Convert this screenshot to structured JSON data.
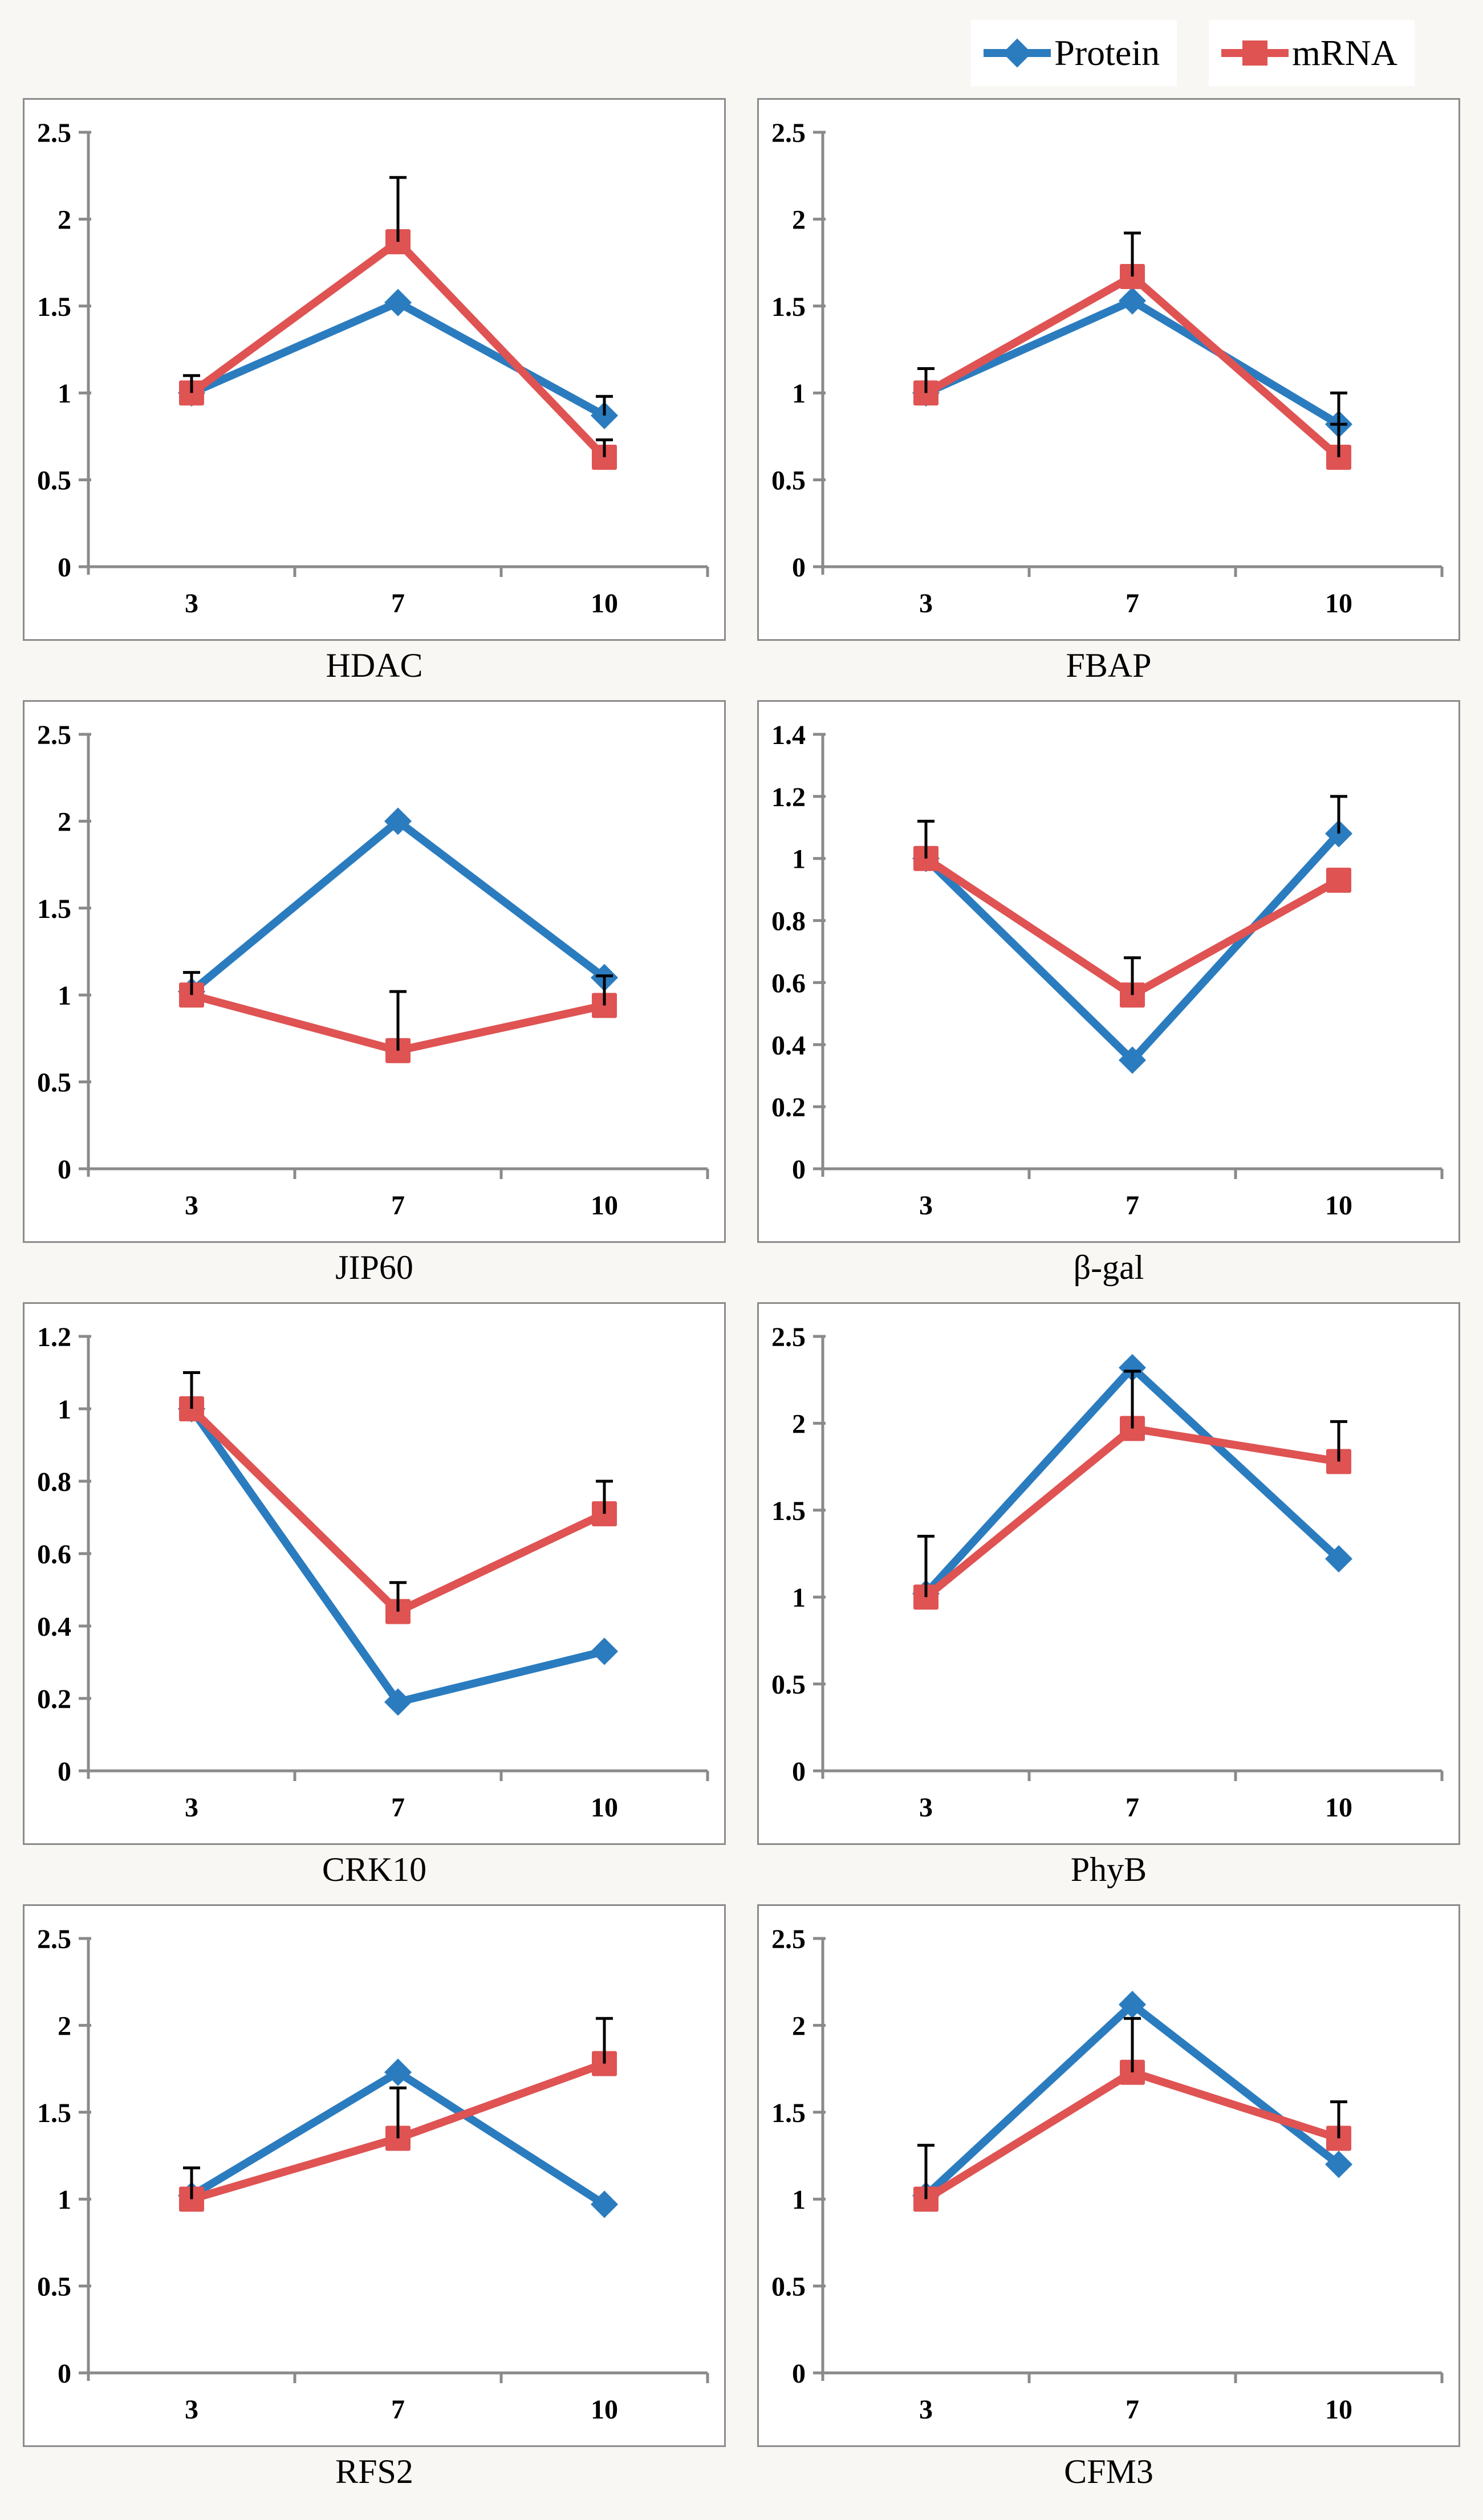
{
  "page": {
    "background": "#F8F7F4",
    "panel_bg": "#FFFFFF",
    "panel_border": "#8C8C8C",
    "axis_color": "#8A8A8A",
    "error_bar_color": "#000000"
  },
  "legend": {
    "items": [
      {
        "label": "Protein",
        "marker": "diamond",
        "color": "#2B7CBF"
      },
      {
        "label": "mRNA",
        "marker": "square",
        "color": "#DF5353"
      }
    ]
  },
  "chart_data": [
    {
      "type": "line",
      "title": "HDAC",
      "categories": [
        "3",
        "7",
        "10"
      ],
      "ylim": [
        0,
        2.5
      ],
      "ytick_step": 0.5,
      "grid": false,
      "series": [
        {
          "name": "Protein",
          "marker": "diamond",
          "color": "#2B7CBF",
          "values": [
            1.0,
            1.52,
            0.87
          ],
          "err_up": [
            0,
            0,
            0.11
          ]
        },
        {
          "name": "mRNA",
          "marker": "square",
          "color": "#DF5353",
          "values": [
            1.0,
            1.87,
            0.63
          ],
          "err_up": [
            0.1,
            0.37,
            0.1
          ]
        }
      ]
    },
    {
      "type": "line",
      "title": "FBAP",
      "categories": [
        "3",
        "7",
        "10"
      ],
      "ylim": [
        0,
        2.5
      ],
      "ytick_step": 0.5,
      "grid": false,
      "series": [
        {
          "name": "Protein",
          "marker": "diamond",
          "color": "#2B7CBF",
          "values": [
            1.0,
            1.53,
            0.82
          ],
          "err_up": [
            0,
            0,
            0.18
          ]
        },
        {
          "name": "mRNA",
          "marker": "square",
          "color": "#DF5353",
          "values": [
            1.0,
            1.67,
            0.63
          ],
          "err_up": [
            0.14,
            0.25,
            0.19
          ]
        }
      ]
    },
    {
      "type": "line",
      "title": "JIP60",
      "categories": [
        "3",
        "7",
        "10"
      ],
      "ylim": [
        0,
        2.5
      ],
      "ytick_step": 0.5,
      "grid": false,
      "series": [
        {
          "name": "Protein",
          "marker": "diamond",
          "color": "#2B7CBF",
          "values": [
            1.02,
            2.0,
            1.1
          ],
          "err_up": [
            0,
            0,
            0
          ]
        },
        {
          "name": "mRNA",
          "marker": "square",
          "color": "#DF5353",
          "values": [
            1.0,
            0.68,
            0.94
          ],
          "err_up": [
            0.13,
            0.34,
            0.17
          ]
        }
      ]
    },
    {
      "type": "line",
      "title": "β-gal",
      "categories": [
        "3",
        "7",
        "10"
      ],
      "ylim": [
        0,
        1.4
      ],
      "ytick_step": 0.2,
      "grid": false,
      "series": [
        {
          "name": "Protein",
          "marker": "diamond",
          "color": "#2B7CBF",
          "values": [
            1.0,
            0.35,
            1.08
          ],
          "err_up": [
            0,
            0,
            0.12
          ]
        },
        {
          "name": "mRNA",
          "marker": "square",
          "color": "#DF5353",
          "values": [
            1.0,
            0.56,
            0.93
          ],
          "err_up": [
            0.12,
            0.12,
            0
          ]
        }
      ]
    },
    {
      "type": "line",
      "title": "CRK10",
      "categories": [
        "3",
        "7",
        "10"
      ],
      "ylim": [
        0,
        1.2
      ],
      "ytick_step": 0.2,
      "grid": false,
      "series": [
        {
          "name": "Protein",
          "marker": "diamond",
          "color": "#2B7CBF",
          "values": [
            1.0,
            0.19,
            0.33
          ],
          "err_up": [
            0,
            0,
            0
          ]
        },
        {
          "name": "mRNA",
          "marker": "square",
          "color": "#DF5353",
          "values": [
            1.0,
            0.44,
            0.71
          ],
          "err_up": [
            0.1,
            0.08,
            0.09
          ]
        }
      ]
    },
    {
      "type": "line",
      "title": "PhyB",
      "categories": [
        "3",
        "7",
        "10"
      ],
      "ylim": [
        0,
        2.5
      ],
      "ytick_step": 0.5,
      "grid": false,
      "series": [
        {
          "name": "Protein",
          "marker": "diamond",
          "color": "#2B7CBF",
          "values": [
            1.02,
            2.32,
            1.22
          ],
          "err_up": [
            0,
            0,
            0
          ]
        },
        {
          "name": "mRNA",
          "marker": "square",
          "color": "#DF5353",
          "values": [
            1.0,
            1.97,
            1.78
          ],
          "err_up": [
            0.35,
            0.33,
            0.23
          ]
        }
      ]
    },
    {
      "type": "line",
      "title": "RFS2",
      "categories": [
        "3",
        "7",
        "10"
      ],
      "ylim": [
        0,
        2.5
      ],
      "ytick_step": 0.5,
      "grid": false,
      "series": [
        {
          "name": "Protein",
          "marker": "diamond",
          "color": "#2B7CBF",
          "values": [
            1.02,
            1.73,
            0.97
          ],
          "err_up": [
            0,
            0,
            0
          ]
        },
        {
          "name": "mRNA",
          "marker": "square",
          "color": "#DF5353",
          "values": [
            1.0,
            1.35,
            1.78
          ],
          "err_up": [
            0.18,
            0.29,
            0.26
          ]
        }
      ]
    },
    {
      "type": "line",
      "title": "CFM3",
      "categories": [
        "3",
        "7",
        "10"
      ],
      "ylim": [
        0,
        2.5
      ],
      "ytick_step": 0.5,
      "grid": false,
      "series": [
        {
          "name": "Protein",
          "marker": "diamond",
          "color": "#2B7CBF",
          "values": [
            1.02,
            2.12,
            1.2
          ],
          "err_up": [
            0,
            0,
            0
          ]
        },
        {
          "name": "mRNA",
          "marker": "square",
          "color": "#DF5353",
          "values": [
            1.0,
            1.73,
            1.35
          ],
          "err_up": [
            0.31,
            0.31,
            0.21
          ]
        }
      ]
    }
  ]
}
